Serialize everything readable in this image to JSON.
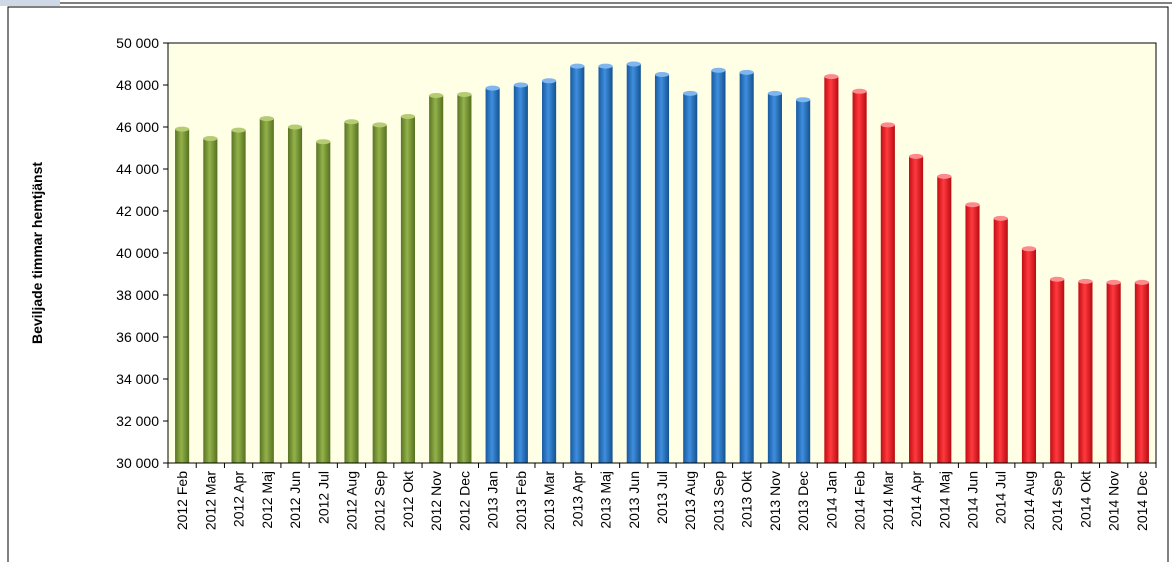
{
  "chart_data": {
    "type": "bar",
    "title": "",
    "xlabel": "",
    "ylabel": "Beviljade  timmar hemtjänst",
    "ylim": [
      30000,
      50000
    ],
    "yticks": [
      30000,
      32000,
      34000,
      36000,
      38000,
      40000,
      42000,
      44000,
      46000,
      48000,
      50000
    ],
    "ytick_labels": [
      "30 000",
      "32 000",
      "34 000",
      "36 000",
      "38 000",
      "40 000",
      "42 000",
      "44 000",
      "46 000",
      "48 000",
      "50 000"
    ],
    "grid": false,
    "legend": "none",
    "categories": [
      "2012 Feb",
      "2012 Mar",
      "2012 Apr",
      "2012 Maj",
      "2012 Jun",
      "2012 Jul",
      "2012 Aug",
      "2012 Sep",
      "2012 Okt",
      "2012 Nov",
      "2012 Dec",
      "2013 Jan",
      "2013 Feb",
      "2013 Mar",
      "2013 Apr",
      "2013 Maj",
      "2013 Jun",
      "2013 Jul",
      "2013 Aug",
      "2013 Sep",
      "2013 Okt",
      "2013 Nov",
      "2013 Dec",
      "2014 Jan",
      "2014 Feb",
      "2014 Mar",
      "2014 Apr",
      "2014 Maj",
      "2014 Jun",
      "2014 Jul",
      "2014 Aug",
      "2014 Sep",
      "2014 Okt",
      "2014 Nov",
      "2014 Dec"
    ],
    "values": [
      45900,
      45450,
      45850,
      46400,
      46000,
      45300,
      46250,
      46100,
      46500,
      47500,
      47550,
      47850,
      48000,
      48200,
      48900,
      48900,
      49000,
      48500,
      47600,
      48700,
      48600,
      47600,
      47300,
      48400,
      47700,
      46100,
      44600,
      43650,
      42300,
      41650,
      40200,
      38750,
      38650,
      38600,
      38600
    ],
    "bar_colors": [
      "#6e8b2e",
      "#6e8b2e",
      "#6e8b2e",
      "#6e8b2e",
      "#6e8b2e",
      "#6e8b2e",
      "#6e8b2e",
      "#6e8b2e",
      "#6e8b2e",
      "#6e8b2e",
      "#6e8b2e",
      "#1f6fc0",
      "#1f6fc0",
      "#1f6fc0",
      "#1f6fc0",
      "#1f6fc0",
      "#1f6fc0",
      "#1f6fc0",
      "#1f6fc0",
      "#1f6fc0",
      "#1f6fc0",
      "#1f6fc0",
      "#1f6fc0",
      "#e8141b",
      "#e8141b",
      "#e8141b",
      "#e8141b",
      "#e8141b",
      "#e8141b",
      "#e8141b",
      "#e8141b",
      "#e8141b",
      "#e8141b",
      "#e8141b",
      "#e8141b"
    ],
    "plot_background": "#ffffe6"
  }
}
